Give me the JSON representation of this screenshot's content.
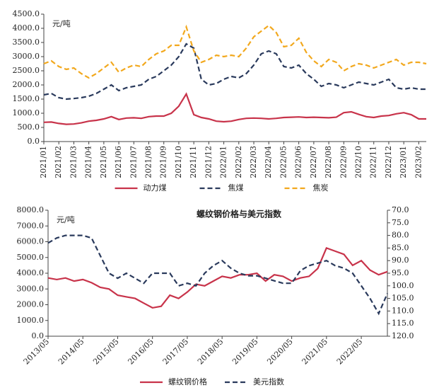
{
  "chart_data": [
    {
      "type": "line",
      "ylabel": "元/吨",
      "categories": [
        "2021/01",
        null,
        "2021/02",
        null,
        "2021/03",
        null,
        "2021/04",
        null,
        "2021/05",
        null,
        "2021/06",
        null,
        "2021/07",
        null,
        "2021/08",
        null,
        "2021/09",
        null,
        "2021/10",
        null,
        "2021/11",
        null,
        "2021/12",
        null,
        "2022/01",
        null,
        "2022/02",
        null,
        "2022/03",
        null,
        "2022/04",
        null,
        "2022/05",
        null,
        "2022/06",
        null,
        "2022/07",
        null,
        "2022/08",
        null,
        "2022/09",
        null,
        "2022/10",
        null,
        "2022/11",
        null,
        "2022/12",
        null,
        "2023/01",
        null,
        "2023/02",
        null
      ],
      "series": [
        {
          "name": "动力煤",
          "color": "#c8334a",
          "dash": false,
          "values": [
            680,
            690,
            640,
            610,
            620,
            660,
            720,
            750,
            800,
            880,
            780,
            830,
            840,
            820,
            880,
            900,
            900,
            1000,
            1250,
            1680,
            950,
            850,
            800,
            720,
            700,
            720,
            780,
            820,
            830,
            820,
            800,
            820,
            850,
            860,
            870,
            850,
            860,
            850,
            840,
            860,
            1020,
            1050,
            960,
            880,
            850,
            900,
            920,
            980,
            1020,
            950,
            800,
            800
          ]
        },
        {
          "name": "焦煤",
          "color": "#2a3a5c",
          "dash": true,
          "values": [
            1650,
            1700,
            1550,
            1500,
            1520,
            1550,
            1600,
            1700,
            1850,
            2000,
            1800,
            1900,
            1950,
            2000,
            2200,
            2300,
            2500,
            2700,
            3000,
            3450,
            3300,
            2200,
            2000,
            2050,
            2200,
            2300,
            2250,
            2400,
            2700,
            3100,
            3200,
            3100,
            2650,
            2600,
            2700,
            2400,
            2200,
            1950,
            2050,
            2000,
            1900,
            2000,
            2100,
            2050,
            2000,
            2100,
            2200,
            1900,
            1850,
            1900,
            1850,
            1850
          ]
        },
        {
          "name": "焦炭",
          "color": "#f2a81d",
          "dash": true,
          "values": [
            2750,
            2850,
            2650,
            2550,
            2600,
            2400,
            2250,
            2400,
            2600,
            2800,
            2450,
            2600,
            2700,
            2650,
            2900,
            3100,
            3200,
            3400,
            3400,
            4050,
            3200,
            2800,
            2900,
            3050,
            3000,
            3050,
            3000,
            3300,
            3700,
            3900,
            4100,
            3850,
            3350,
            3400,
            3650,
            3150,
            2850,
            2650,
            2900,
            2800,
            2500,
            2650,
            2750,
            2700,
            2600,
            2700,
            2800,
            2900,
            2700,
            2800,
            2800,
            2750
          ]
        }
      ],
      "ylim": [
        0,
        4500
      ],
      "yticks": [
        {
          "value": 0,
          "label": "0.0"
        },
        {
          "value": 500,
          "label": "500.0"
        },
        {
          "value": 1000,
          "label": "1000.0"
        },
        {
          "value": 1500,
          "label": "1500.0"
        },
        {
          "value": 2000,
          "label": "2000.0"
        },
        {
          "value": 2500,
          "label": "2500.0"
        },
        {
          "value": 3000,
          "label": "3000.0"
        },
        {
          "value": 3500,
          "label": "3500.0"
        },
        {
          "value": 4000,
          "label": "4000.0"
        },
        {
          "value": 4500,
          "label": "4500.0"
        }
      ],
      "legend": "bottom"
    },
    {
      "type": "line",
      "title": "螺纹钢价格与美元指数",
      "ylabel": "元/吨",
      "categories": [
        "2013/05",
        null,
        null,
        null,
        "2014/05",
        null,
        null,
        null,
        "2015/05",
        null,
        null,
        null,
        "2016/05",
        null,
        null,
        null,
        "2017/05",
        null,
        null,
        null,
        "2018/05",
        null,
        null,
        null,
        "2019/05",
        null,
        null,
        null,
        "2020/05",
        null,
        null,
        null,
        "2021/05",
        null,
        null,
        null,
        "2022/05",
        null,
        null,
        null
      ],
      "series": [
        {
          "name": "螺纹钢价格",
          "color": "#c8334a",
          "dash": false,
          "values": [
            3700,
            3600,
            3700,
            3500,
            3600,
            3400,
            3100,
            3000,
            2600,
            2500,
            2400,
            2100,
            1800,
            1900,
            2600,
            2400,
            2800,
            3300,
            3200,
            3500,
            3800,
            3700,
            3900,
            3900,
            4000,
            3500,
            3900,
            3800,
            3500,
            3700,
            3800,
            4300,
            5600,
            5400,
            5200,
            4500,
            4800,
            4200,
            3900,
            4100
          ]
        },
        {
          "name": "美元指数",
          "color": "#2a3a5c",
          "dash": true,
          "axis": "y2",
          "values": [
            83,
            81,
            80,
            80,
            80,
            81,
            88,
            95,
            97,
            95,
            97,
            99,
            95,
            95,
            95,
            100,
            99,
            100,
            95,
            92,
            90,
            93,
            95,
            96,
            96,
            97,
            98,
            99,
            99,
            94,
            92,
            91,
            90,
            92,
            93,
            95,
            100,
            105,
            111,
            103
          ]
        }
      ],
      "ylim": [
        0,
        8000
      ],
      "yticks": [
        {
          "value": 0,
          "label": "0.0"
        },
        {
          "value": 1000,
          "label": "1000.0"
        },
        {
          "value": 2000,
          "label": "2000.0"
        },
        {
          "value": 3000,
          "label": "3000.0"
        },
        {
          "value": 4000,
          "label": "4000.0"
        },
        {
          "value": 5000,
          "label": "5000.0"
        },
        {
          "value": 6000,
          "label": "6000.0"
        },
        {
          "value": 7000,
          "label": "7000.0"
        },
        {
          "value": 8000,
          "label": "8000.0"
        }
      ],
      "y2lim": [
        120,
        70
      ],
      "y2ticks": [
        {
          "value": 70,
          "label": "70.0"
        },
        {
          "value": 75,
          "label": "75.0"
        },
        {
          "value": 80,
          "label": "80.0"
        },
        {
          "value": 85,
          "label": "85.0"
        },
        {
          "value": 90,
          "label": "90.0"
        },
        {
          "value": 95,
          "label": "95.0"
        },
        {
          "value": 100,
          "label": "100.0"
        },
        {
          "value": 105,
          "label": "105.0"
        },
        {
          "value": 110,
          "label": "110.0"
        },
        {
          "value": 115,
          "label": "115.0"
        },
        {
          "value": 120,
          "label": "120.0"
        }
      ],
      "legend": "bottom"
    }
  ]
}
